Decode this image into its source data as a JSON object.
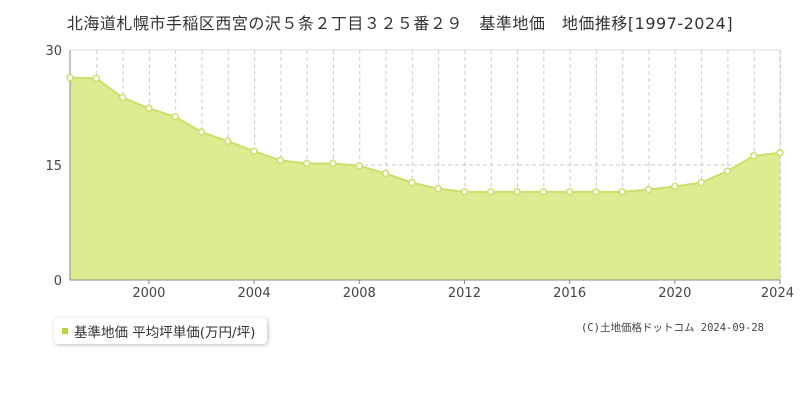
{
  "chart_data": {
    "type": "area",
    "title": "北海道札幌市手稲区西宮の沢５条２丁目３２５番２９　基準地価　地価推移[1997-2024]",
    "x": [
      1997,
      1998,
      1999,
      2000,
      2001,
      2002,
      2003,
      2004,
      2005,
      2006,
      2007,
      2008,
      2009,
      2010,
      2011,
      2012,
      2013,
      2014,
      2015,
      2016,
      2017,
      2018,
      2019,
      2020,
      2021,
      2022,
      2023,
      2024
    ],
    "series": [
      {
        "name": "基準地価 平均坪単価(万円/坪)",
        "values": [
          26.4,
          26.3,
          23.8,
          22.4,
          21.3,
          19.3,
          18.1,
          16.8,
          15.6,
          15.2,
          15.2,
          14.9,
          13.9,
          12.7,
          11.9,
          11.5,
          11.5,
          11.5,
          11.5,
          11.5,
          11.5,
          11.5,
          11.8,
          12.2,
          12.7,
          14.2,
          16.2,
          16.6
        ]
      }
    ],
    "xlim": [
      1997,
      2024
    ],
    "ylim": [
      0,
      30
    ],
    "x_ticks": [
      "2000",
      "2004",
      "2008",
      "2012",
      "2016",
      "2020",
      "2024"
    ],
    "y_ticks": [
      "0",
      "15",
      "30"
    ],
    "grid": true,
    "fill_color": "#dbec91",
    "line_color": "#c9e06a",
    "legend_swatch_color": "#b5d63d"
  },
  "copyright": "(C)土地価格ドットコム 2024-09-28"
}
